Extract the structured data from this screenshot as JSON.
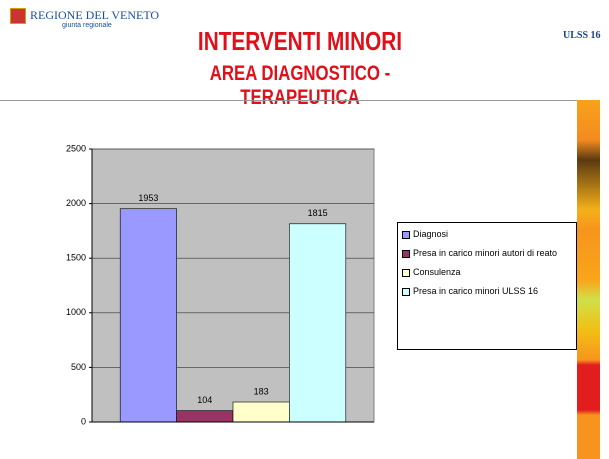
{
  "header": {
    "region_name": "REGIONE DEL VENETO",
    "region_sub": "giunta regionale",
    "title": "INTERVENTI MINORI",
    "subtitle": "AREA DIAGNOSTICO - TERAPEUTICA",
    "ulss_logo": "ULSS 16"
  },
  "chart_data": {
    "type": "bar",
    "categories": [
      null
    ],
    "series": [
      {
        "name": "Diagnosi",
        "color": "#9999ff",
        "values": [
          1953
        ]
      },
      {
        "name": "Presa in carico minori autori di reato",
        "color": "#993366",
        "values": [
          104
        ]
      },
      {
        "name": "Consulenza",
        "color": "#ffffcc",
        "values": [
          183
        ]
      },
      {
        "name": "Presa in carico minori ULSS 16",
        "color": "#ccffff",
        "values": [
          1815
        ]
      }
    ],
    "ylim": [
      0,
      2500
    ],
    "yticks": [
      0,
      500,
      1000,
      1500,
      2000,
      2500
    ],
    "grid": true,
    "legend": "right"
  }
}
